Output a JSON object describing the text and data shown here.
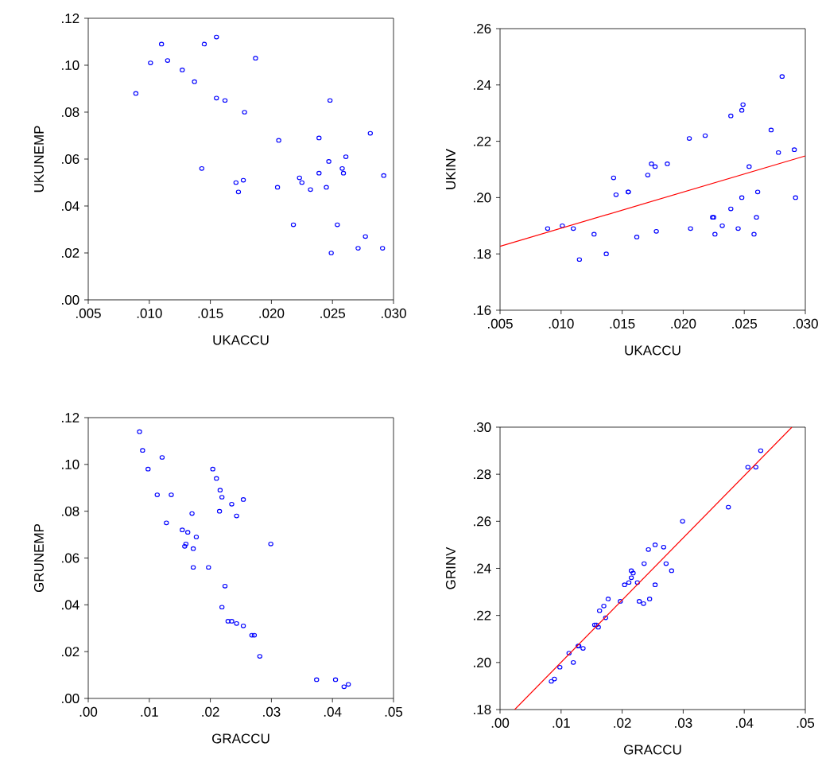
{
  "chart_data": [
    {
      "type": "scatter",
      "xlabel": "UKACCU",
      "ylabel": "UKUNEMP",
      "xlim": [
        0.005,
        0.03
      ],
      "ylim": [
        0,
        0.12
      ],
      "xticks": [
        {
          "value": 0.005,
          "label": ".005"
        },
        {
          "value": 0.01,
          "label": ".010"
        },
        {
          "value": 0.015,
          "label": ".015"
        },
        {
          "value": 0.02,
          "label": ".020"
        },
        {
          "value": 0.025,
          "label": ".025"
        },
        {
          "value": 0.03,
          "label": ".030"
        }
      ],
      "yticks": [
        {
          "value": 0,
          "label": ".00"
        },
        {
          "value": 0.02,
          "label": ".02"
        },
        {
          "value": 0.04,
          "label": ".04"
        },
        {
          "value": 0.06,
          "label": ".06"
        },
        {
          "value": 0.08,
          "label": ".08"
        },
        {
          "value": 0.1,
          "label": ".10"
        },
        {
          "value": 0.12,
          "label": ".12"
        }
      ],
      "series": [
        {
          "color": "#0000ff",
          "marker": "circle",
          "x": [
            0.0089,
            0.0101,
            0.011,
            0.0115,
            0.0127,
            0.0137,
            0.0145,
            0.0155,
            0.0155,
            0.0162,
            0.0178,
            0.0187,
            0.0143,
            0.0171,
            0.0177,
            0.0173,
            0.0205,
            0.0206,
            0.0218,
            0.0223,
            0.0225,
            0.0232,
            0.0239,
            0.0239,
            0.0245,
            0.0247,
            0.0248,
            0.0249,
            0.0254,
            0.0258,
            0.0259,
            0.0261,
            0.0271,
            0.0277,
            0.0281,
            0.0291,
            0.0292
          ],
          "values": [
            0.088,
            0.101,
            0.109,
            0.102,
            0.098,
            0.093,
            0.109,
            0.112,
            0.086,
            0.085,
            0.08,
            0.103,
            0.056,
            0.05,
            0.051,
            0.046,
            0.048,
            0.068,
            0.032,
            0.052,
            0.05,
            0.047,
            0.054,
            0.069,
            0.048,
            0.059,
            0.085,
            0.02,
            0.032,
            0.056,
            0.054,
            0.061,
            0.022,
            0.027,
            0.071,
            0.022,
            0.053
          ]
        }
      ]
    },
    {
      "type": "scatter",
      "xlabel": "UKACCU",
      "ylabel": "UKINV",
      "xlim": [
        0.005,
        0.03
      ],
      "ylim": [
        0.16,
        0.26
      ],
      "xticks": [
        {
          "value": 0.005,
          "label": ".005"
        },
        {
          "value": 0.01,
          "label": ".010"
        },
        {
          "value": 0.015,
          "label": ".015"
        },
        {
          "value": 0.02,
          "label": ".020"
        },
        {
          "value": 0.025,
          "label": ".025"
        },
        {
          "value": 0.03,
          "label": ".030"
        }
      ],
      "yticks": [
        {
          "value": 0.16,
          "label": ".16"
        },
        {
          "value": 0.18,
          "label": ".18"
        },
        {
          "value": 0.2,
          "label": ".20"
        },
        {
          "value": 0.22,
          "label": ".22"
        },
        {
          "value": 0.24,
          "label": ".24"
        },
        {
          "value": 0.26,
          "label": ".26"
        }
      ],
      "series": [
        {
          "color": "#0000ff",
          "marker": "circle",
          "x": [
            0.0089,
            0.0101,
            0.011,
            0.0115,
            0.0127,
            0.0137,
            0.0143,
            0.0145,
            0.0155,
            0.0155,
            0.0162,
            0.0171,
            0.0174,
            0.0177,
            0.0178,
            0.0187,
            0.0205,
            0.0206,
            0.0218,
            0.0224,
            0.0225,
            0.0226,
            0.0232,
            0.0239,
            0.0239,
            0.0245,
            0.0248,
            0.0248,
            0.0249,
            0.0254,
            0.0258,
            0.026,
            0.0261,
            0.0272,
            0.0278,
            0.0281,
            0.0291,
            0.0292
          ],
          "values": [
            0.189,
            0.19,
            0.189,
            0.178,
            0.187,
            0.18,
            0.207,
            0.201,
            0.202,
            0.202,
            0.186,
            0.208,
            0.212,
            0.211,
            0.188,
            0.212,
            0.221,
            0.189,
            0.222,
            0.193,
            0.193,
            0.187,
            0.19,
            0.196,
            0.229,
            0.189,
            0.2,
            0.231,
            0.233,
            0.211,
            0.187,
            0.193,
            0.202,
            0.224,
            0.216,
            0.243,
            0.217,
            0.2
          ]
        },
        {
          "type": "line",
          "marker": "none",
          "color": "#ff0000",
          "x": [
            0.005,
            0.03
          ],
          "values": [
            0.1827,
            0.2148
          ]
        }
      ]
    },
    {
      "type": "scatter",
      "xlabel": "GRACCU",
      "ylabel": "GRUNEMP",
      "xlim": [
        0,
        0.05
      ],
      "ylim": [
        0,
        0.12
      ],
      "xticks": [
        {
          "value": 0,
          "label": ".00"
        },
        {
          "value": 0.01,
          "label": ".01"
        },
        {
          "value": 0.02,
          "label": ".02"
        },
        {
          "value": 0.03,
          "label": ".03"
        },
        {
          "value": 0.04,
          "label": ".04"
        },
        {
          "value": 0.05,
          "label": ".05"
        }
      ],
      "yticks": [
        {
          "value": 0,
          "label": ".00"
        },
        {
          "value": 0.02,
          "label": ".02"
        },
        {
          "value": 0.04,
          "label": ".04"
        },
        {
          "value": 0.06,
          "label": ".06"
        },
        {
          "value": 0.08,
          "label": ".08"
        },
        {
          "value": 0.1,
          "label": ".10"
        },
        {
          "value": 0.12,
          "label": ".12"
        }
      ],
      "series": [
        {
          "color": "#0000ff",
          "marker": "circle",
          "x": [
            0.0084,
            0.0089,
            0.0121,
            0.0098,
            0.0113,
            0.0136,
            0.017,
            0.0128,
            0.0154,
            0.0163,
            0.0177,
            0.016,
            0.0158,
            0.0172,
            0.0172,
            0.0197,
            0.0204,
            0.021,
            0.0216,
            0.0219,
            0.0235,
            0.0254,
            0.0215,
            0.0243,
            0.0299,
            0.0224,
            0.0219,
            0.0229,
            0.0235,
            0.0243,
            0.0254,
            0.0268,
            0.0272,
            0.0281,
            0.0374,
            0.0405,
            0.0419,
            0.0426
          ],
          "values": [
            0.114,
            0.106,
            0.103,
            0.098,
            0.087,
            0.087,
            0.079,
            0.075,
            0.072,
            0.071,
            0.069,
            0.066,
            0.065,
            0.064,
            0.056,
            0.056,
            0.098,
            0.094,
            0.089,
            0.086,
            0.083,
            0.085,
            0.08,
            0.078,
            0.066,
            0.048,
            0.039,
            0.033,
            0.033,
            0.032,
            0.031,
            0.027,
            0.027,
            0.018,
            0.008,
            0.008,
            0.005,
            0.006
          ]
        }
      ]
    },
    {
      "type": "scatter",
      "xlabel": "GRACCU",
      "ylabel": "GRINV",
      "xlim": [
        0,
        0.05
      ],
      "ylim": [
        0.18,
        0.3
      ],
      "xticks": [
        {
          "value": 0,
          "label": ".00"
        },
        {
          "value": 0.01,
          "label": ".01"
        },
        {
          "value": 0.02,
          "label": ".02"
        },
        {
          "value": 0.03,
          "label": ".03"
        },
        {
          "value": 0.04,
          "label": ".04"
        },
        {
          "value": 0.05,
          "label": ".05"
        }
      ],
      "yticks": [
        {
          "value": 0.18,
          "label": ".18"
        },
        {
          "value": 0.2,
          "label": ".20"
        },
        {
          "value": 0.22,
          "label": ".22"
        },
        {
          "value": 0.24,
          "label": ".24"
        },
        {
          "value": 0.26,
          "label": ".26"
        },
        {
          "value": 0.28,
          "label": ".28"
        },
        {
          "value": 0.3,
          "label": ".30"
        }
      ],
      "series": [
        {
          "color": "#0000ff",
          "marker": "circle",
          "x": [
            0.0084,
            0.0089,
            0.0098,
            0.0113,
            0.012,
            0.0128,
            0.0129,
            0.0136,
            0.0155,
            0.0158,
            0.0161,
            0.0163,
            0.017,
            0.0173,
            0.0177,
            0.0197,
            0.0204,
            0.0211,
            0.0215,
            0.0218,
            0.0215,
            0.0225,
            0.0228,
            0.0235,
            0.0245,
            0.0236,
            0.0243,
            0.0254,
            0.0254,
            0.0268,
            0.0272,
            0.0281,
            0.0299,
            0.0374,
            0.0406,
            0.0419,
            0.0427
          ],
          "values": [
            0.192,
            0.193,
            0.198,
            0.204,
            0.2,
            0.207,
            0.207,
            0.206,
            0.216,
            0.216,
            0.215,
            0.222,
            0.224,
            0.219,
            0.227,
            0.226,
            0.233,
            0.234,
            0.236,
            0.238,
            0.239,
            0.234,
            0.226,
            0.225,
            0.227,
            0.242,
            0.248,
            0.25,
            0.233,
            0.249,
            0.242,
            0.239,
            0.26,
            0.266,
            0.283,
            0.283,
            0.29
          ]
        },
        {
          "type": "line",
          "marker": "none",
          "color": "#ff0000",
          "x": [
            0.0024,
            0.0478
          ],
          "values": [
            0.18,
            0.3
          ]
        }
      ]
    }
  ]
}
